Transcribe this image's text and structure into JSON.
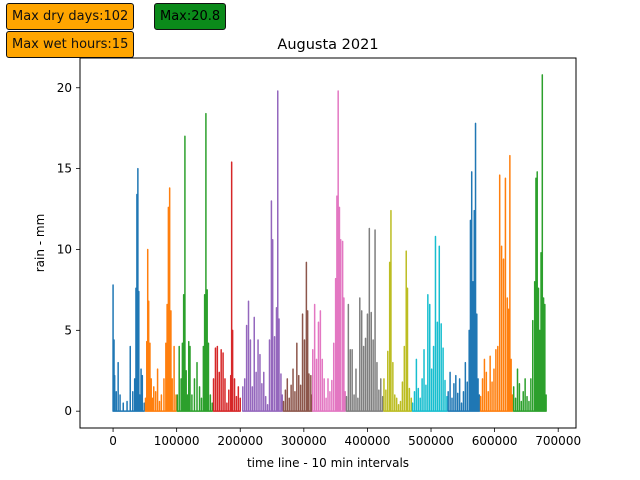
{
  "badges": {
    "max_dry_days": "Max dry days:102",
    "max_value": "Max:20.8",
    "max_wet_hours": "Max wet hours:15"
  },
  "colors": {
    "badge_orange": "#ffa500",
    "badge_green": "#0b8a1a"
  },
  "chart_data": {
    "type": "line",
    "title": "Augusta 2021",
    "xlabel": "time line - 10 min intervals",
    "ylabel": "rain - mm",
    "xlim": [
      -52000,
      728000
    ],
    "ylim": [
      -1.04,
      21.84
    ],
    "xticks": [
      0,
      100000,
      200000,
      300000,
      400000,
      500000,
      600000,
      700000
    ],
    "xtick_labels": [
      "0",
      "100000",
      "200000",
      "300000",
      "400000",
      "500000",
      "600000",
      "700000"
    ],
    "yticks": [
      0,
      5,
      10,
      15,
      20
    ],
    "ytick_labels": [
      "0",
      "5",
      "10",
      "15",
      "20"
    ],
    "grid": false,
    "series": [
      {
        "color": "#1f77b4",
        "x": [
          0,
          1500,
          2500,
          5000,
          8000,
          11000,
          16000,
          22000,
          27000,
          31000,
          34000,
          36000,
          37500,
          39000,
          40500,
          42000,
          44000,
          46000,
          49000
        ],
        "values": [
          7.8,
          4.4,
          2.2,
          1.2,
          3.0,
          1.0,
          0.5,
          0.6,
          4.0,
          1.2,
          2.0,
          7.6,
          13.4,
          15.0,
          7.4,
          1.0,
          2.6,
          2.2,
          0.5
        ]
      },
      {
        "color": "#ff7f0e",
        "x": [
          51000,
          53000,
          54500,
          56000,
          58000,
          60000,
          62000,
          64000,
          67000,
          70000,
          73000,
          76000,
          80000,
          83000,
          85000,
          87000,
          89000,
          91000,
          93000,
          96000,
          99000
        ],
        "values": [
          0.8,
          4.3,
          10.0,
          6.8,
          4.2,
          2.0,
          0.8,
          1.5,
          1.2,
          2.6,
          0.6,
          1.0,
          2.0,
          4.2,
          6.6,
          12.6,
          13.8,
          6.2,
          2.0,
          4.0,
          1.0
        ]
      },
      {
        "color": "#2ca02c",
        "x": [
          101000,
          104000,
          107000,
          109000,
          111000,
          113000,
          115000,
          117000,
          119000,
          121000,
          124000,
          128000,
          132000,
          136000,
          139000,
          142000,
          144000,
          146000,
          148000,
          150000,
          153000,
          156000
        ],
        "values": [
          1.0,
          4.0,
          2.0,
          4.2,
          7.2,
          17.0,
          2.5,
          1.0,
          4.3,
          4.0,
          1.0,
          2.0,
          3.0,
          1.5,
          0.8,
          4.0,
          7.2,
          18.4,
          7.5,
          4.2,
          1.0,
          0.5
        ]
      },
      {
        "color": "#d62728",
        "x": [
          158000,
          161000,
          164000,
          167000,
          170000,
          173000,
          176000,
          179000,
          182000,
          185000,
          186500,
          188000,
          191000,
          194000,
          197000,
          200000
        ],
        "values": [
          2.0,
          3.9,
          4.0,
          2.4,
          3.8,
          3.6,
          2.0,
          0.5,
          1.3,
          2.2,
          15.4,
          5.0,
          2.0,
          0.9,
          1.5,
          0.8
        ]
      },
      {
        "color": "#9467bd",
        "x": [
          204000,
          207000,
          210000,
          213000,
          216000,
          219000,
          222000,
          225000,
          228000,
          231000,
          234000,
          237000,
          240000,
          243000,
          246000,
          249000,
          251000,
          254000,
          257000,
          259000,
          261000,
          264000,
          266000
        ],
        "values": [
          1.5,
          2.0,
          5.3,
          6.8,
          4.4,
          1.5,
          5.8,
          2.4,
          4.4,
          3.5,
          1.7,
          2.4,
          0.9,
          0.4,
          4.4,
          13.0,
          10.6,
          4.6,
          6.4,
          19.8,
          5.7,
          2.3,
          1.0
        ]
      },
      {
        "color": "#8c564b",
        "x": [
          268000,
          271000,
          274000,
          277000,
          280000,
          283000,
          286000,
          289000,
          292000,
          295000,
          298000,
          301000,
          304000,
          306000,
          308000,
          311000,
          313000
        ],
        "values": [
          0.6,
          1.3,
          2.0,
          0.8,
          1.6,
          2.6,
          1.2,
          4.2,
          2.2,
          1.6,
          6.0,
          4.4,
          9.2,
          6.2,
          2.3,
          2.2,
          1.0
        ]
      },
      {
        "color": "#e377c2",
        "x": [
          314000,
          317000,
          320000,
          323000,
          326000,
          329000,
          332000,
          335000,
          338000,
          341000,
          344000,
          347000,
          350000,
          352000,
          354000,
          356000,
          358000,
          361000,
          363000,
          365000
        ],
        "values": [
          3.8,
          6.6,
          3.2,
          5.5,
          6.2,
          3.2,
          2.0,
          0.8,
          2.0,
          1.2,
          1.9,
          4.2,
          8.2,
          13.3,
          19.8,
          12.6,
          10.6,
          10.5,
          7.0,
          1.2
        ]
      },
      {
        "color": "#7f7f7f",
        "x": [
          367000,
          370000,
          373000,
          376000,
          379000,
          382000,
          385000,
          388000,
          391000,
          394000,
          397000,
          400000,
          403000,
          406000,
          409000,
          412000,
          415000,
          418000,
          421000,
          424000
        ],
        "values": [
          0.9,
          6.6,
          3.8,
          3.8,
          1.0,
          2.6,
          0.8,
          7.0,
          6.2,
          4.0,
          4.5,
          6.0,
          11.3,
          6.1,
          4.4,
          11.2,
          3.0,
          1.3,
          2.0,
          0.9
        ]
      },
      {
        "color": "#bcbd22",
        "x": [
          426000,
          429000,
          432000,
          435000,
          437000,
          440000,
          443000,
          446000,
          449000,
          452000,
          455000,
          458000,
          461000,
          463000,
          466000,
          469000
        ],
        "values": [
          2.0,
          1.3,
          3.7,
          9.2,
          12.4,
          3.0,
          1.0,
          0.8,
          0.4,
          0.6,
          1.8,
          4.0,
          9.9,
          7.6,
          1.4,
          0.8
        ]
      },
      {
        "color": "#17becf",
        "x": [
          471000,
          474000,
          477000,
          480000,
          483000,
          486000,
          489000,
          492000,
          495000,
          498000,
          501000,
          504000,
          507000,
          510000,
          513000,
          516000,
          519000,
          522000,
          525000
        ],
        "values": [
          0.5,
          1.2,
          3.2,
          1.4,
          0.8,
          2.0,
          3.8,
          1.6,
          7.2,
          6.6,
          2.6,
          4.0,
          10.8,
          5.5,
          10.2,
          5.4,
          3.9,
          1.9,
          0.9
        ]
      },
      {
        "color": "#1f77b4",
        "x": [
          527000,
          530000,
          533000,
          536000,
          539000,
          542000,
          545000,
          548000,
          551000,
          554000,
          557000,
          560000,
          562000,
          564000,
          566000,
          568000,
          570000,
          572000,
          574000,
          576000
        ],
        "values": [
          1.2,
          2.4,
          0.8,
          1.7,
          2.2,
          1.1,
          2.0,
          0.5,
          1.2,
          3.0,
          1.8,
          5.0,
          11.8,
          14.8,
          8.0,
          12.4,
          17.8,
          6.0,
          2.0,
          1.0
        ]
      },
      {
        "color": "#ff7f0e",
        "x": [
          578000,
          581000,
          584000,
          587000,
          590000,
          593000,
          596000,
          599000,
          602000,
          605000,
          608000,
          611000,
          614000,
          617000,
          620000,
          622000,
          624000,
          626000,
          628000
        ],
        "values": [
          0.9,
          2.0,
          3.2,
          2.4,
          1.2,
          3.4,
          1.8,
          2.6,
          3.8,
          4.0,
          14.6,
          10.2,
          9.4,
          14.4,
          7.0,
          6.3,
          15.8,
          3.2,
          1.0
        ]
      },
      {
        "color": "#2ca02c",
        "x": [
          630000,
          633000,
          636000,
          639000,
          642000,
          645000,
          648000,
          651000,
          654000,
          657000,
          660000,
          663000,
          665000,
          667000,
          669000,
          671000,
          673000,
          675000,
          677000,
          679000,
          681000
        ],
        "values": [
          1.5,
          0.8,
          2.6,
          1.7,
          0.6,
          1.2,
          2.0,
          0.9,
          0.6,
          2.0,
          5.6,
          8.0,
          14.4,
          14.8,
          7.6,
          5.0,
          9.8,
          20.8,
          7.0,
          6.6,
          1.0
        ]
      }
    ]
  }
}
